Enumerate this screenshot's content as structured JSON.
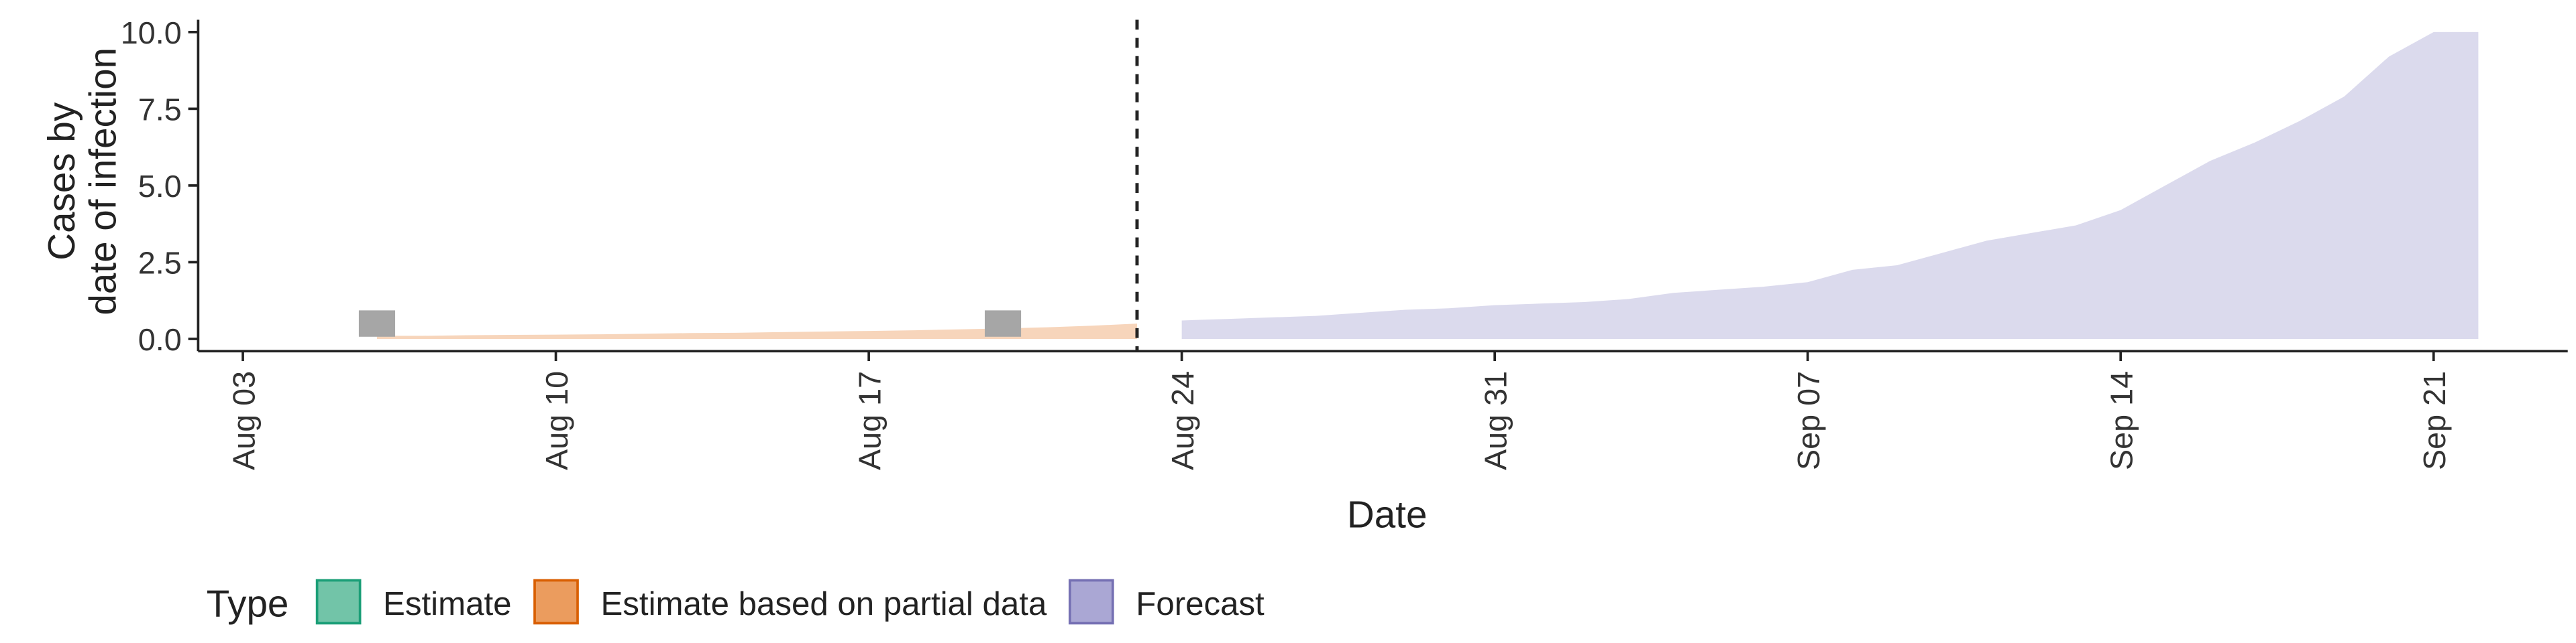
{
  "chart_data": {
    "type": "area",
    "xlabel": "Date",
    "ylabel": [
      "Cases by",
      "date of infection"
    ],
    "xlim": [
      "Aug 02",
      "Sep 24"
    ],
    "xticks": [
      "Aug 03",
      "Aug 10",
      "Aug 17",
      "Aug 24",
      "Aug 31",
      "Sep 07",
      "Sep 14",
      "Sep 21"
    ],
    "ylim": [
      -0.4,
      10.4
    ],
    "yticks": [
      {
        "value": 0,
        "label": "0.0"
      },
      2.5,
      {
        "value": 5,
        "label": "5.0"
      },
      7.5,
      {
        "value": 10,
        "label": "10.0"
      }
    ],
    "vline": "Aug 23",
    "legend_title": "Type",
    "points": {
      "color": "#a6a6a6",
      "x": [
        "Aug 06",
        "Aug 20"
      ],
      "values": [
        0.5,
        0.5
      ]
    },
    "series": [
      {
        "name": "Estimate",
        "color": "#72c4a8",
        "border": "#1b9e77",
        "x": [],
        "values": []
      },
      {
        "name": "Estimate based on partial data",
        "color": "#eb9c5e",
        "border": "#d95f02",
        "x": [
          "Aug 06",
          "Aug 07",
          "Aug 08",
          "Aug 09",
          "Aug 10",
          "Aug 11",
          "Aug 12",
          "Aug 13",
          "Aug 14",
          "Aug 15",
          "Aug 16",
          "Aug 17",
          "Aug 18",
          "Aug 19",
          "Aug 20",
          "Aug 21",
          "Aug 22",
          "Aug 23"
        ],
        "values": [
          0.1,
          0.1,
          0.12,
          0.13,
          0.14,
          0.15,
          0.17,
          0.19,
          0.2,
          0.22,
          0.24,
          0.26,
          0.28,
          0.31,
          0.34,
          0.38,
          0.43,
          0.5
        ]
      },
      {
        "name": "Forecast",
        "color": "#aaa7d4",
        "border": "#7570b3",
        "x": [
          "Aug 24",
          "Aug 25",
          "Aug 26",
          "Aug 27",
          "Aug 28",
          "Aug 29",
          "Aug 30",
          "Aug 31",
          "Sep 01",
          "Sep 02",
          "Sep 03",
          "Sep 04",
          "Sep 05",
          "Sep 06",
          "Sep 07",
          "Sep 08",
          "Sep 09",
          "Sep 10",
          "Sep 11",
          "Sep 12",
          "Sep 13",
          "Sep 14",
          "Sep 15",
          "Sep 16",
          "Sep 17",
          "Sep 18",
          "Sep 19",
          "Sep 20",
          "Sep 21",
          "Sep 22"
        ],
        "values": [
          0.6,
          0.65,
          0.7,
          0.75,
          0.85,
          0.95,
          1.0,
          1.1,
          1.15,
          1.2,
          1.3,
          1.5,
          1.6,
          1.7,
          1.85,
          2.25,
          2.4,
          2.8,
          3.2,
          3.45,
          3.7,
          4.2,
          5.0,
          5.8,
          6.4,
          7.1,
          7.9,
          9.2,
          10,
          10
        ]
      }
    ]
  }
}
